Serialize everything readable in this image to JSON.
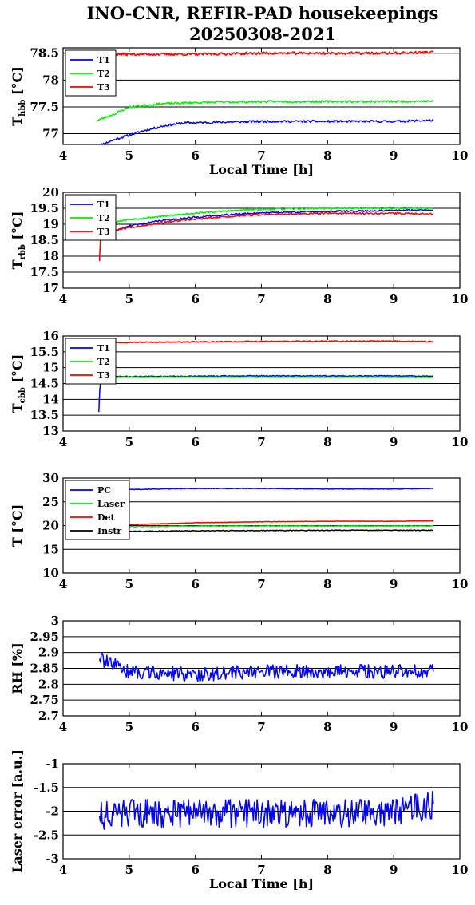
{
  "title": {
    "line1": "INO-CNR, REFIR-PAD housekeepings",
    "line2": "20250308-2021"
  },
  "colors": {
    "blue": "#0000ff",
    "green": "#00ee00",
    "red": "#ff0000",
    "black": "#000000"
  },
  "chart_data": [
    {
      "type": "line",
      "ylabel_main": "T",
      "ylabel_sub": "hbb",
      "ylabel_unit": " [°C]",
      "xlabel": "Local Time [h]",
      "xlim": [
        4,
        10
      ],
      "ylim": [
        76.8,
        78.6
      ],
      "xticks": [
        "4",
        "5",
        "6",
        "7",
        "8",
        "9",
        "10"
      ],
      "yticks": [
        {
          "v": 77,
          "label": "77"
        },
        {
          "v": 77.5,
          "label": "77.5"
        },
        {
          "v": 78,
          "label": "78"
        },
        {
          "v": 78.5,
          "label": "78.5"
        }
      ],
      "grid": true,
      "legend": "top-left",
      "series": [
        {
          "name": "T1",
          "color": "#0000ff",
          "points": [
            [
              4.5,
              76.76
            ],
            [
              4.8,
              76.9
            ],
            [
              5.2,
              77.05
            ],
            [
              5.5,
              77.14
            ],
            [
              5.8,
              77.2
            ],
            [
              6.2,
              77.21
            ],
            [
              7.0,
              77.23
            ],
            [
              8.0,
              77.23
            ],
            [
              9.0,
              77.23
            ],
            [
              9.6,
              77.25
            ]
          ],
          "noise": 0.02,
          "seed": 11
        },
        {
          "name": "T2",
          "color": "#00ee00",
          "points": [
            [
              4.5,
              77.24
            ],
            [
              4.8,
              77.38
            ],
            [
              5.0,
              77.5
            ],
            [
              5.5,
              77.56
            ],
            [
              6.0,
              77.58
            ],
            [
              7.0,
              77.6
            ],
            [
              8.0,
              77.6
            ],
            [
              9.0,
              77.6
            ],
            [
              9.6,
              77.61
            ]
          ],
          "noise": 0.02,
          "seed": 23
        },
        {
          "name": "T3",
          "color": "#ff0000",
          "points": [
            [
              4.5,
              78.12
            ],
            [
              4.6,
              78.45
            ],
            [
              4.8,
              78.48
            ],
            [
              6.0,
              78.48
            ],
            [
              7.0,
              78.5
            ],
            [
              8.0,
              78.5
            ],
            [
              9.0,
              78.5
            ],
            [
              9.6,
              78.52
            ]
          ],
          "noise": 0.025,
          "seed": 37
        }
      ]
    },
    {
      "type": "line",
      "ylabel_main": "T",
      "ylabel_sub": "rbb",
      "ylabel_unit": " [°C]",
      "xlabel": "",
      "xlim": [
        4,
        10
      ],
      "ylim": [
        17,
        20
      ],
      "xticks": [
        "4",
        "5",
        "6",
        "7",
        "8",
        "9",
        "10"
      ],
      "yticks": [
        {
          "v": 17,
          "label": "17"
        },
        {
          "v": 17.5,
          "label": "17.5"
        },
        {
          "v": 18,
          "label": "18"
        },
        {
          "v": 18.5,
          "label": "18.5"
        },
        {
          "v": 19,
          "label": "19"
        },
        {
          "v": 19.5,
          "label": "19.5"
        },
        {
          "v": 20,
          "label": "20"
        }
      ],
      "grid": true,
      "legend": "top-left",
      "series": [
        {
          "name": "T1",
          "color": "#0000ff",
          "points": [
            [
              4.55,
              18.6
            ],
            [
              5.0,
              18.95
            ],
            [
              5.5,
              19.12
            ],
            [
              6.0,
              19.22
            ],
            [
              6.5,
              19.3
            ],
            [
              7.0,
              19.36
            ],
            [
              8.0,
              19.4
            ],
            [
              9.0,
              19.43
            ],
            [
              9.6,
              19.45
            ]
          ],
          "noise": 0.025,
          "seed": 41
        },
        {
          "name": "T2",
          "color": "#00ee00",
          "points": [
            [
              4.55,
              19.0
            ],
            [
              5.0,
              19.15
            ],
            [
              5.5,
              19.25
            ],
            [
              6.0,
              19.35
            ],
            [
              6.5,
              19.42
            ],
            [
              7.0,
              19.47
            ],
            [
              8.0,
              19.5
            ],
            [
              9.0,
              19.52
            ],
            [
              9.6,
              19.5
            ]
          ],
          "noise": 0.025,
          "seed": 53
        },
        {
          "name": "T3",
          "color": "#ff0000",
          "points": [
            [
              4.55,
              17.85
            ],
            [
              4.56,
              18.45
            ],
            [
              4.6,
              18.75
            ],
            [
              5.0,
              18.9
            ],
            [
              5.5,
              19.05
            ],
            [
              6.0,
              19.16
            ],
            [
              6.5,
              19.24
            ],
            [
              7.0,
              19.3
            ],
            [
              8.0,
              19.34
            ],
            [
              9.0,
              19.34
            ],
            [
              9.6,
              19.33
            ]
          ],
          "noise": 0.025,
          "seed": 67
        }
      ]
    },
    {
      "type": "line",
      "ylabel_main": "T",
      "ylabel_sub": "cbb",
      "ylabel_unit": " [°C]",
      "xlabel": "",
      "xlim": [
        4,
        10
      ],
      "ylim": [
        13,
        16
      ],
      "xticks": [
        "4",
        "5",
        "6",
        "7",
        "8",
        "9",
        "10"
      ],
      "yticks": [
        {
          "v": 13,
          "label": "13"
        },
        {
          "v": 13.5,
          "label": "13.5"
        },
        {
          "v": 14,
          "label": "14"
        },
        {
          "v": 14.5,
          "label": "14.5"
        },
        {
          "v": 15,
          "label": "15"
        },
        {
          "v": 15.5,
          "label": "15.5"
        },
        {
          "v": 16,
          "label": "16"
        }
      ],
      "grid": true,
      "legend": "top-left",
      "series": [
        {
          "name": "T1",
          "color": "#0000ff",
          "points": [
            [
              4.54,
              13.6
            ],
            [
              4.56,
              14.55
            ],
            [
              4.6,
              14.72
            ],
            [
              5.0,
              14.72
            ],
            [
              7.0,
              14.74
            ],
            [
              9.0,
              14.74
            ],
            [
              9.6,
              14.73
            ]
          ],
          "noise": 0.015,
          "seed": 71
        },
        {
          "name": "T2",
          "color": "#00ee00",
          "points": [
            [
              4.55,
              14.7
            ],
            [
              5.0,
              14.7
            ],
            [
              7.0,
              14.7
            ],
            [
              9.0,
              14.7
            ],
            [
              9.6,
              14.69
            ]
          ],
          "noise": 0.015,
          "seed": 83
        },
        {
          "name": "T3",
          "color": "#ff0000",
          "points": [
            [
              4.55,
              15.78
            ],
            [
              5.0,
              15.8
            ],
            [
              7.0,
              15.83
            ],
            [
              9.0,
              15.84
            ],
            [
              9.6,
              15.82
            ]
          ],
          "noise": 0.015,
          "seed": 97
        }
      ]
    },
    {
      "type": "line",
      "ylabel_main": "T [°C]",
      "ylabel_sub": "",
      "ylabel_unit": "",
      "xlabel": "",
      "xlim": [
        4,
        10
      ],
      "ylim": [
        10,
        30
      ],
      "xticks": [
        "4",
        "5",
        "6",
        "7",
        "8",
        "9",
        "10"
      ],
      "yticks": [
        {
          "v": 10,
          "label": "10"
        },
        {
          "v": 15,
          "label": "15"
        },
        {
          "v": 20,
          "label": "20"
        },
        {
          "v": 25,
          "label": "25"
        },
        {
          "v": 30,
          "label": "30"
        }
      ],
      "grid": true,
      "legend": "top-left",
      "series": [
        {
          "name": "PC",
          "color": "#0000ff",
          "points": [
            [
              4.55,
              27.3
            ],
            [
              5.0,
              27.6
            ],
            [
              6.0,
              27.8
            ],
            [
              7.0,
              27.8
            ],
            [
              8.0,
              27.7
            ],
            [
              9.0,
              27.7
            ],
            [
              9.6,
              27.8
            ]
          ],
          "noise": 0.06,
          "seed": 101
        },
        {
          "name": "Laser",
          "color": "#00ee00",
          "points": [
            [
              4.55,
              19.7
            ],
            [
              6.0,
              19.9
            ],
            [
              8.0,
              19.9
            ],
            [
              9.6,
              19.9
            ]
          ],
          "noise": 0.08,
          "seed": 113
        },
        {
          "name": "Det",
          "color": "#ff0000",
          "points": [
            [
              4.55,
              19.9
            ],
            [
              5.0,
              20.2
            ],
            [
              6.0,
              20.6
            ],
            [
              7.0,
              20.8
            ],
            [
              8.0,
              20.9
            ],
            [
              9.0,
              20.9
            ],
            [
              9.6,
              21.0
            ]
          ],
          "noise": 0.05,
          "seed": 127
        },
        {
          "name": "Instr",
          "color": "#000000",
          "points": [
            [
              4.55,
              18.7
            ],
            [
              6.0,
              18.9
            ],
            [
              8.0,
              19.0
            ],
            [
              9.6,
              19.0
            ]
          ],
          "noise": 0.08,
          "seed": 131
        }
      ]
    },
    {
      "type": "line",
      "ylabel_main": "RH [%]",
      "ylabel_sub": "",
      "ylabel_unit": "",
      "xlabel": "",
      "xlim": [
        4,
        10
      ],
      "ylim": [
        2.7,
        3
      ],
      "xticks": [
        "4",
        "5",
        "6",
        "7",
        "8",
        "9",
        "10"
      ],
      "yticks": [
        {
          "v": 2.7,
          "label": "2.7"
        },
        {
          "v": 2.75,
          "label": "2.75"
        },
        {
          "v": 2.8,
          "label": "2.8"
        },
        {
          "v": 2.85,
          "label": "2.85"
        },
        {
          "v": 2.9,
          "label": "2.9"
        },
        {
          "v": 2.95,
          "label": "2.95"
        },
        {
          "v": 3,
          "label": "3"
        }
      ],
      "grid": true,
      "legend": "none",
      "series": [
        {
          "name": "",
          "color": "#0000ff",
          "points": [
            [
              4.55,
              2.88
            ],
            [
              5.0,
              2.84
            ],
            [
              6.0,
              2.83
            ],
            [
              7.0,
              2.84
            ],
            [
              8.0,
              2.84
            ],
            [
              9.0,
              2.84
            ],
            [
              9.6,
              2.84
            ]
          ],
          "noise": 0.022,
          "seed": 139
        }
      ]
    },
    {
      "type": "line",
      "ylabel_main": "Laser error [a.u.]",
      "ylabel_sub": "",
      "ylabel_unit": "",
      "xlabel": "Local Time [h]",
      "xlim": [
        4,
        10
      ],
      "ylim": [
        -3,
        -1
      ],
      "xticks": [
        "4",
        "5",
        "6",
        "7",
        "8",
        "9",
        "10"
      ],
      "yticks": [
        {
          "v": -3,
          "label": "-3"
        },
        {
          "v": -2.5,
          "label": "-2.5"
        },
        {
          "v": -2,
          "label": "-2"
        },
        {
          "v": -1.5,
          "label": "-1.5"
        },
        {
          "v": -1,
          "label": "-1"
        }
      ],
      "grid": true,
      "legend": "none",
      "series": [
        {
          "name": "",
          "color": "#0000ff",
          "points": [
            [
              4.55,
              -2.1
            ],
            [
              5.0,
              -2.05
            ],
            [
              6.0,
              -2.05
            ],
            [
              7.0,
              -2.05
            ],
            [
              8.0,
              -2.05
            ],
            [
              9.0,
              -2.05
            ],
            [
              9.6,
              -1.85
            ]
          ],
          "noise": 0.3,
          "seed": 151
        }
      ]
    }
  ]
}
